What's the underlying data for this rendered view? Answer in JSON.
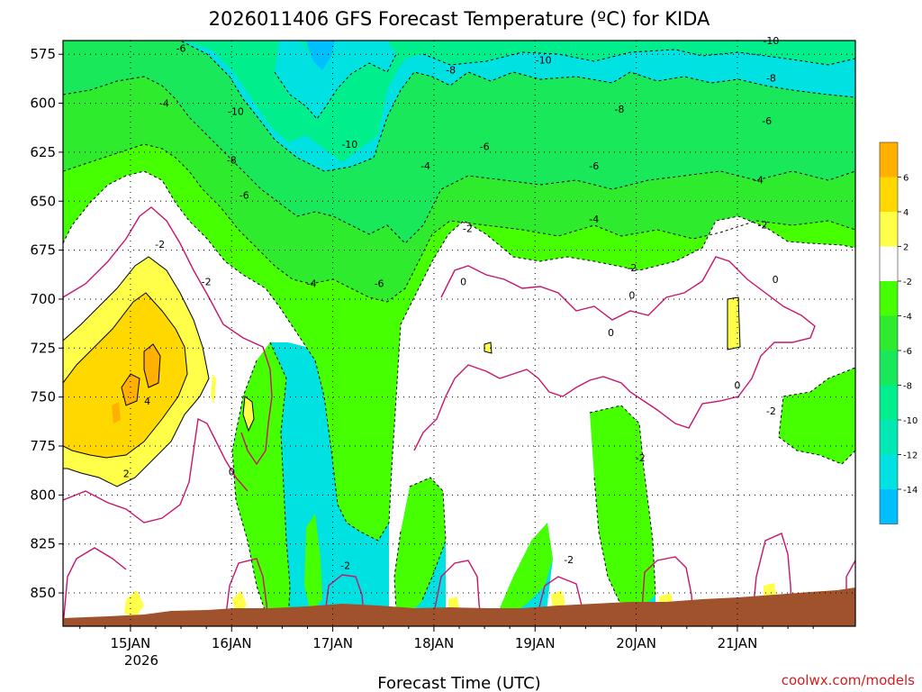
{
  "chart_data": {
    "type": "time-height contour",
    "title": "2026011406  GFS Forecast Temperature (ºC) for KIDA",
    "xlabel": "Forecast Time (UTC)",
    "ylabel": "",
    "x_ticks": [
      "15JAN",
      "16JAN",
      "17JAN",
      "18JAN",
      "19JAN",
      "20JAN",
      "21JAN"
    ],
    "x_year": "2026",
    "xlim_hours": [
      -16,
      172
    ],
    "y_ticks": [
      575,
      600,
      625,
      650,
      675,
      700,
      725,
      750,
      775,
      800,
      825,
      850
    ],
    "ylim_hpa": [
      568,
      867
    ],
    "colorbar_levels": [
      6,
      4,
      2,
      -2,
      -4,
      -6,
      -8,
      -10,
      -12,
      -14
    ],
    "colorbar_colors": [
      "#ffb000",
      "#ffd800",
      "#ffff4a",
      "#ffffff",
      "#46ff00",
      "#2eeb2e",
      "#19e85a",
      "#00ef8c",
      "#00e8b4",
      "#00e2e2",
      "#00bfff"
    ],
    "contour_labels": [
      {
        "text": "-6",
        "t": 12,
        "p": 572
      },
      {
        "text": "-4",
        "t": 8,
        "p": 600
      },
      {
        "text": "-10",
        "t": 25,
        "p": 604
      },
      {
        "text": "-10",
        "t": 52,
        "p": 621
      },
      {
        "text": "-8",
        "t": 24,
        "p": 629
      },
      {
        "text": "-6",
        "t": 27,
        "p": 647
      },
      {
        "text": "-2",
        "t": 7,
        "p": 672
      },
      {
        "text": "-2",
        "t": 18,
        "p": 691
      },
      {
        "text": "-4",
        "t": 43,
        "p": 692
      },
      {
        "text": "-6",
        "t": 59,
        "p": 692
      },
      {
        "text": "4",
        "t": 4,
        "p": 752
      },
      {
        "text": "2",
        "t": -1,
        "p": 789
      },
      {
        "text": "0",
        "t": 24,
        "p": 788
      },
      {
        "text": "-2",
        "t": 51,
        "p": 836
      },
      {
        "text": "-8",
        "t": 76,
        "p": 583
      },
      {
        "text": "-10",
        "t": 98,
        "p": 578
      },
      {
        "text": "-6",
        "t": 84,
        "p": 622
      },
      {
        "text": "-4",
        "t": 70,
        "p": 632
      },
      {
        "text": "-2",
        "t": 80,
        "p": 664
      },
      {
        "text": "0",
        "t": 79,
        "p": 691
      },
      {
        "text": "0",
        "t": 114,
        "p": 717
      },
      {
        "text": "0",
        "t": 119,
        "p": 698
      },
      {
        "text": "-8",
        "t": 116,
        "p": 603
      },
      {
        "text": "-6",
        "t": 110,
        "p": 632
      },
      {
        "text": "-4",
        "t": 110,
        "p": 659
      },
      {
        "text": "-2",
        "t": 119,
        "p": 684
      },
      {
        "text": "-2",
        "t": 121,
        "p": 781
      },
      {
        "text": "-2",
        "t": 104,
        "p": 833
      },
      {
        "text": "-10",
        "t": 152,
        "p": 568
      },
      {
        "text": "-8",
        "t": 152,
        "p": 587
      },
      {
        "text": "-6",
        "t": 151,
        "p": 609
      },
      {
        "text": "-4",
        "t": 149,
        "p": 639
      },
      {
        "text": "-2",
        "t": 150,
        "p": 662
      },
      {
        "text": "0",
        "t": 153,
        "p": 690
      },
      {
        "text": "0",
        "t": 144,
        "p": 744
      },
      {
        "text": "-2",
        "t": 152,
        "p": 757
      }
    ]
  },
  "credit": "coolwx.com/models"
}
